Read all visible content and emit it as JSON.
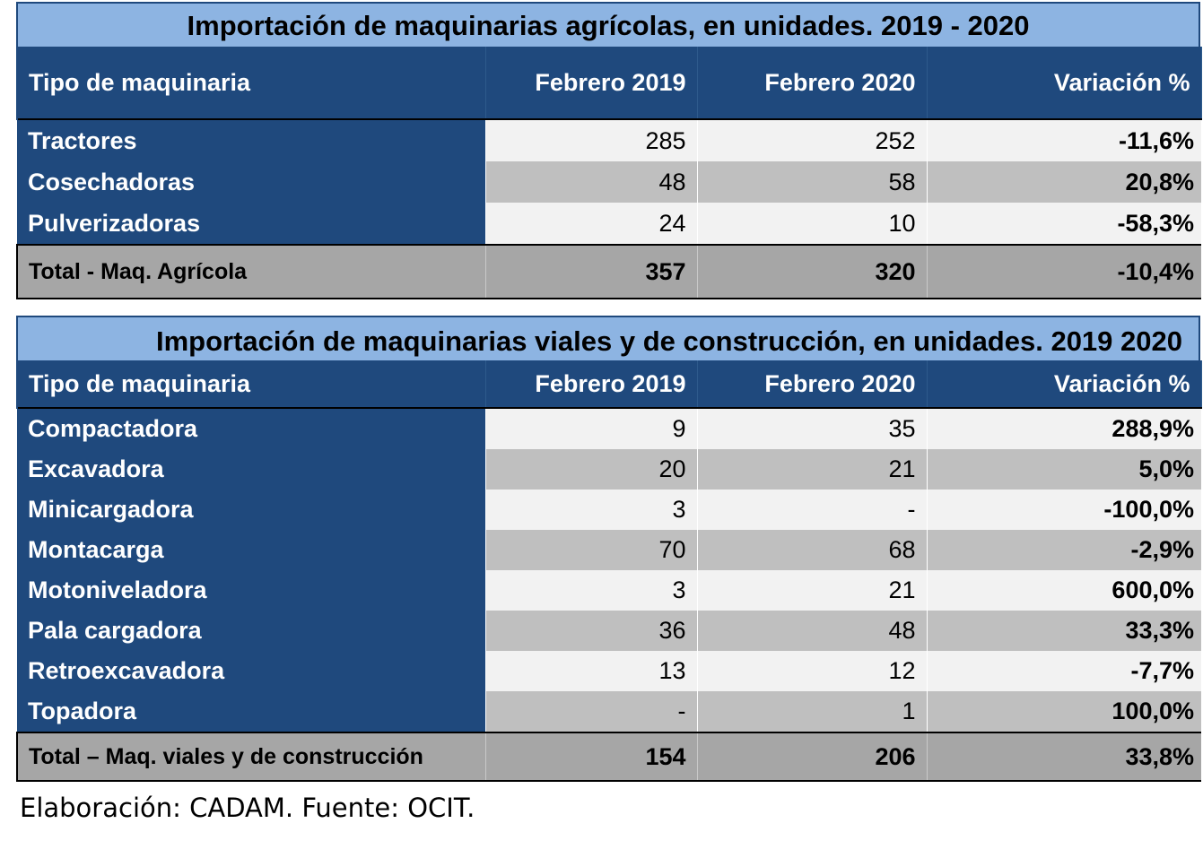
{
  "table1": {
    "title": "Importación de maquinarias agrícolas, en unidades. 2019 - 2020",
    "headers": [
      "Tipo de maquinaria",
      "Febrero 2019",
      "Febrero 2020",
      "Variación %"
    ],
    "rows": [
      {
        "name": "Tractores",
        "feb2019": "285",
        "feb2020": "252",
        "var": "-11,6%"
      },
      {
        "name": "Cosechadoras",
        "feb2019": "48",
        "feb2020": "58",
        "var": "20,8%"
      },
      {
        "name": "Pulverizadoras",
        "feb2019": "24",
        "feb2020": "10",
        "var": "-58,3%"
      }
    ],
    "total": {
      "name": "Total - Maq. Agrícola",
      "feb2019": "357",
      "feb2020": "320",
      "var": "-10,4%"
    }
  },
  "table2": {
    "title": "Importación de maquinarias viales y de construcción, en unidades. 2019 2020",
    "headers": [
      "Tipo de maquinaria",
      "Febrero 2019",
      "Febrero 2020",
      "Variación %"
    ],
    "rows": [
      {
        "name": "Compactadora",
        "feb2019": "9",
        "feb2020": "35",
        "var": "288,9%"
      },
      {
        "name": "Excavadora",
        "feb2019": "20",
        "feb2020": "21",
        "var": "5,0%"
      },
      {
        "name": "Minicargadora",
        "feb2019": "3",
        "feb2020": "-",
        "var": "-100,0%"
      },
      {
        "name": "Montacarga",
        "feb2019": "70",
        "feb2020": "68",
        "var": "-2,9%"
      },
      {
        "name": "Motoniveladora",
        "feb2019": "3",
        "feb2020": "21",
        "var": "600,0%"
      },
      {
        "name": "Pala cargadora",
        "feb2019": "36",
        "feb2020": "48",
        "var": "33,3%"
      },
      {
        "name": "Retroexcavadora",
        "feb2019": "13",
        "feb2020": "12",
        "var": "-7,7%"
      },
      {
        "name": "Topadora",
        "feb2019": "-",
        "feb2020": "1",
        "var": "100,0%"
      }
    ],
    "total": {
      "name": "Total – Maq. viales y de construcción",
      "feb2019": "154",
      "feb2020": "206",
      "var": "33,8%"
    }
  },
  "source": "Elaboración: CADAM. Fuente: OCIT.",
  "colors": {
    "title_bg": "#8db4e2",
    "header_bg": "#1f497d",
    "row_light": "#f2f2f2",
    "row_dark": "#bfbfbf",
    "total_bg": "#a6a6a6"
  }
}
